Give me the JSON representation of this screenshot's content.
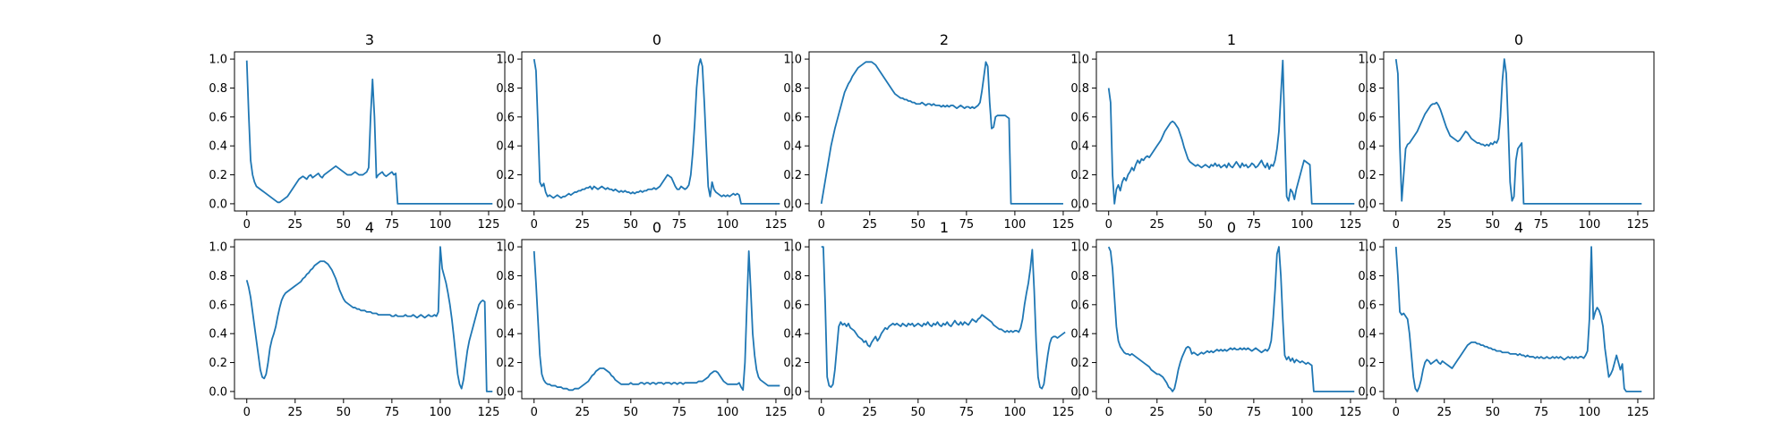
{
  "figure": {
    "series_color": "#1f77b4",
    "xticks": [
      0,
      25,
      50,
      75,
      100,
      125
    ],
    "yticks": [
      0.0,
      0.2,
      0.4,
      0.6,
      0.8,
      1.0
    ],
    "ytick_labels": [
      "0.0",
      "0.2",
      "0.4",
      "0.6",
      "0.8",
      "1.0"
    ],
    "xlim": [
      -6.35,
      133.35
    ],
    "ylim": [
      -0.05,
      1.05
    ]
  },
  "chart_data": [
    {
      "type": "line",
      "title": "3",
      "x_start": 0,
      "values": [
        0.99,
        0.62,
        0.3,
        0.2,
        0.15,
        0.12,
        0.11,
        0.1,
        0.09,
        0.08,
        0.07,
        0.06,
        0.05,
        0.04,
        0.03,
        0.02,
        0.01,
        0.01,
        0.02,
        0.03,
        0.04,
        0.05,
        0.07,
        0.09,
        0.11,
        0.13,
        0.15,
        0.17,
        0.18,
        0.19,
        0.18,
        0.17,
        0.19,
        0.2,
        0.18,
        0.19,
        0.2,
        0.21,
        0.19,
        0.18,
        0.2,
        0.21,
        0.22,
        0.23,
        0.24,
        0.25,
        0.26,
        0.25,
        0.24,
        0.23,
        0.22,
        0.21,
        0.2,
        0.2,
        0.2,
        0.21,
        0.22,
        0.21,
        0.2,
        0.2,
        0.2,
        0.21,
        0.22,
        0.25,
        0.6,
        0.86,
        0.6,
        0.18,
        0.2,
        0.21,
        0.22,
        0.2,
        0.19,
        0.2,
        0.21,
        0.22,
        0.2,
        0.21,
        0.0,
        0.0,
        0.0,
        0.0,
        0.0,
        0.0,
        0.0,
        0.0,
        0.0,
        0.0,
        0.0,
        0.0,
        0.0,
        0.0,
        0.0,
        0.0,
        0.0,
        0.0,
        0.0,
        0.0,
        0.0,
        0.0,
        0.0,
        0.0,
        0.0,
        0.0,
        0.0,
        0.0,
        0.0,
        0.0,
        0.0,
        0.0,
        0.0,
        0.0,
        0.0,
        0.0,
        0.0,
        0.0,
        0.0,
        0.0,
        0.0,
        0.0,
        0.0,
        0.0,
        0.0,
        0.0,
        0.0,
        0.0,
        0.0,
        0.0
      ]
    },
    {
      "type": "line",
      "title": "0",
      "x_start": 0,
      "values": [
        1.0,
        0.92,
        0.55,
        0.15,
        0.12,
        0.14,
        0.08,
        0.05,
        0.06,
        0.05,
        0.04,
        0.05,
        0.06,
        0.05,
        0.04,
        0.05,
        0.05,
        0.06,
        0.07,
        0.06,
        0.07,
        0.08,
        0.08,
        0.09,
        0.09,
        0.1,
        0.1,
        0.11,
        0.11,
        0.12,
        0.1,
        0.12,
        0.11,
        0.1,
        0.11,
        0.12,
        0.11,
        0.1,
        0.11,
        0.1,
        0.1,
        0.09,
        0.1,
        0.09,
        0.08,
        0.09,
        0.08,
        0.09,
        0.08,
        0.08,
        0.07,
        0.08,
        0.07,
        0.08,
        0.08,
        0.09,
        0.08,
        0.09,
        0.09,
        0.1,
        0.1,
        0.1,
        0.11,
        0.1,
        0.11,
        0.12,
        0.14,
        0.16,
        0.18,
        0.2,
        0.19,
        0.18,
        0.15,
        0.12,
        0.1,
        0.1,
        0.12,
        0.11,
        0.1,
        0.11,
        0.13,
        0.2,
        0.35,
        0.55,
        0.8,
        0.95,
        1.0,
        0.95,
        0.7,
        0.4,
        0.12,
        0.05,
        0.15,
        0.1,
        0.08,
        0.07,
        0.06,
        0.05,
        0.06,
        0.05,
        0.06,
        0.05,
        0.06,
        0.07,
        0.06,
        0.07,
        0.06,
        0.0,
        0.0,
        0.0,
        0.0,
        0.0,
        0.0,
        0.0,
        0.0,
        0.0,
        0.0,
        0.0,
        0.0,
        0.0,
        0.0,
        0.0,
        0.0,
        0.0,
        0.0,
        0.0,
        0.0,
        0.0
      ]
    },
    {
      "type": "line",
      "title": "2",
      "x_start": 0,
      "values": [
        0.0,
        0.08,
        0.16,
        0.24,
        0.32,
        0.4,
        0.46,
        0.52,
        0.57,
        0.62,
        0.67,
        0.72,
        0.77,
        0.8,
        0.83,
        0.85,
        0.88,
        0.9,
        0.92,
        0.94,
        0.95,
        0.96,
        0.97,
        0.98,
        0.98,
        0.98,
        0.98,
        0.97,
        0.96,
        0.94,
        0.92,
        0.9,
        0.88,
        0.86,
        0.84,
        0.82,
        0.8,
        0.78,
        0.76,
        0.75,
        0.74,
        0.73,
        0.73,
        0.72,
        0.72,
        0.71,
        0.71,
        0.7,
        0.7,
        0.69,
        0.69,
        0.69,
        0.7,
        0.69,
        0.68,
        0.69,
        0.69,
        0.68,
        0.69,
        0.68,
        0.68,
        0.68,
        0.67,
        0.68,
        0.67,
        0.68,
        0.67,
        0.68,
        0.68,
        0.67,
        0.66,
        0.67,
        0.68,
        0.67,
        0.66,
        0.67,
        0.67,
        0.66,
        0.67,
        0.66,
        0.67,
        0.68,
        0.7,
        0.78,
        0.88,
        0.98,
        0.95,
        0.7,
        0.52,
        0.53,
        0.6,
        0.61,
        0.61,
        0.61,
        0.61,
        0.61,
        0.6,
        0.59,
        0.0,
        0.0,
        0.0,
        0.0,
        0.0,
        0.0,
        0.0,
        0.0,
        0.0,
        0.0,
        0.0,
        0.0,
        0.0,
        0.0,
        0.0,
        0.0,
        0.0,
        0.0,
        0.0,
        0.0,
        0.0,
        0.0,
        0.0,
        0.0,
        0.0,
        0.0,
        0.0,
        0.0
      ]
    },
    {
      "type": "line",
      "title": "1",
      "x_start": 0,
      "values": [
        0.8,
        0.7,
        0.2,
        0.0,
        0.1,
        0.13,
        0.09,
        0.15,
        0.18,
        0.16,
        0.2,
        0.22,
        0.25,
        0.23,
        0.27,
        0.3,
        0.28,
        0.31,
        0.3,
        0.32,
        0.33,
        0.32,
        0.34,
        0.36,
        0.38,
        0.4,
        0.42,
        0.44,
        0.47,
        0.5,
        0.52,
        0.54,
        0.56,
        0.57,
        0.56,
        0.54,
        0.52,
        0.48,
        0.44,
        0.39,
        0.35,
        0.31,
        0.29,
        0.28,
        0.27,
        0.26,
        0.27,
        0.26,
        0.25,
        0.26,
        0.27,
        0.26,
        0.25,
        0.27,
        0.26,
        0.28,
        0.26,
        0.27,
        0.25,
        0.26,
        0.27,
        0.25,
        0.28,
        0.26,
        0.25,
        0.27,
        0.29,
        0.27,
        0.25,
        0.28,
        0.26,
        0.27,
        0.25,
        0.26,
        0.28,
        0.27,
        0.25,
        0.26,
        0.28,
        0.3,
        0.27,
        0.25,
        0.28,
        0.24,
        0.27,
        0.26,
        0.3,
        0.38,
        0.5,
        0.75,
        0.99,
        0.5,
        0.05,
        0.02,
        0.1,
        0.08,
        0.03,
        0.1,
        0.15,
        0.2,
        0.25,
        0.3,
        0.29,
        0.28,
        0.27,
        0.0,
        0.0,
        0.0,
        0.0,
        0.0,
        0.0,
        0.0,
        0.0,
        0.0,
        0.0,
        0.0,
        0.0,
        0.0,
        0.0,
        0.0,
        0.0,
        0.0,
        0.0,
        0.0,
        0.0,
        0.0,
        0.0,
        0.0
      ]
    },
    {
      "type": "line",
      "title": "0",
      "x_start": 0,
      "values": [
        1.0,
        0.9,
        0.4,
        0.02,
        0.2,
        0.38,
        0.41,
        0.42,
        0.44,
        0.46,
        0.48,
        0.5,
        0.53,
        0.56,
        0.59,
        0.62,
        0.64,
        0.66,
        0.68,
        0.69,
        0.69,
        0.7,
        0.68,
        0.65,
        0.61,
        0.57,
        0.53,
        0.5,
        0.47,
        0.46,
        0.45,
        0.44,
        0.43,
        0.44,
        0.46,
        0.48,
        0.5,
        0.49,
        0.47,
        0.45,
        0.44,
        0.43,
        0.42,
        0.42,
        0.41,
        0.41,
        0.4,
        0.41,
        0.4,
        0.42,
        0.41,
        0.43,
        0.42,
        0.45,
        0.6,
        0.85,
        1.0,
        0.9,
        0.55,
        0.15,
        0.02,
        0.05,
        0.3,
        0.38,
        0.4,
        0.42,
        0.0,
        0.0,
        0.0,
        0.0,
        0.0,
        0.0,
        0.0,
        0.0,
        0.0,
        0.0,
        0.0,
        0.0,
        0.0,
        0.0,
        0.0,
        0.0,
        0.0,
        0.0,
        0.0,
        0.0,
        0.0,
        0.0,
        0.0,
        0.0,
        0.0,
        0.0,
        0.0,
        0.0,
        0.0,
        0.0,
        0.0,
        0.0,
        0.0,
        0.0,
        0.0,
        0.0,
        0.0,
        0.0,
        0.0,
        0.0,
        0.0,
        0.0,
        0.0,
        0.0,
        0.0,
        0.0,
        0.0,
        0.0,
        0.0,
        0.0,
        0.0,
        0.0,
        0.0,
        0.0,
        0.0,
        0.0,
        0.0,
        0.0,
        0.0,
        0.0,
        0.0,
        0.0
      ]
    },
    {
      "type": "line",
      "title": "4",
      "x_start": 0,
      "values": [
        0.77,
        0.72,
        0.65,
        0.55,
        0.45,
        0.35,
        0.25,
        0.15,
        0.1,
        0.09,
        0.12,
        0.2,
        0.3,
        0.36,
        0.4,
        0.45,
        0.52,
        0.58,
        0.63,
        0.66,
        0.68,
        0.69,
        0.7,
        0.71,
        0.72,
        0.73,
        0.74,
        0.75,
        0.76,
        0.78,
        0.79,
        0.81,
        0.82,
        0.84,
        0.85,
        0.87,
        0.88,
        0.89,
        0.9,
        0.9,
        0.9,
        0.89,
        0.88,
        0.86,
        0.84,
        0.81,
        0.78,
        0.74,
        0.7,
        0.67,
        0.64,
        0.62,
        0.61,
        0.6,
        0.59,
        0.58,
        0.58,
        0.57,
        0.57,
        0.56,
        0.56,
        0.56,
        0.55,
        0.55,
        0.55,
        0.54,
        0.54,
        0.54,
        0.53,
        0.53,
        0.53,
        0.53,
        0.53,
        0.53,
        0.53,
        0.52,
        0.52,
        0.53,
        0.52,
        0.52,
        0.52,
        0.52,
        0.53,
        0.52,
        0.52,
        0.52,
        0.53,
        0.52,
        0.51,
        0.52,
        0.53,
        0.52,
        0.51,
        0.52,
        0.53,
        0.52,
        0.52,
        0.53,
        0.52,
        0.55,
        1.0,
        0.85,
        0.8,
        0.75,
        0.68,
        0.6,
        0.5,
        0.38,
        0.25,
        0.12,
        0.05,
        0.02,
        0.08,
        0.18,
        0.28,
        0.35,
        0.4,
        0.45,
        0.5,
        0.55,
        0.6,
        0.62,
        0.63,
        0.62,
        0.0,
        0.0,
        0.0,
        0.0
      ]
    },
    {
      "type": "line",
      "title": "0",
      "x_start": 0,
      "values": [
        0.97,
        0.75,
        0.5,
        0.25,
        0.12,
        0.08,
        0.06,
        0.05,
        0.05,
        0.04,
        0.04,
        0.04,
        0.03,
        0.03,
        0.03,
        0.02,
        0.02,
        0.02,
        0.01,
        0.01,
        0.01,
        0.02,
        0.02,
        0.02,
        0.03,
        0.04,
        0.05,
        0.06,
        0.07,
        0.09,
        0.11,
        0.12,
        0.14,
        0.15,
        0.16,
        0.16,
        0.16,
        0.15,
        0.14,
        0.13,
        0.11,
        0.1,
        0.08,
        0.07,
        0.06,
        0.05,
        0.05,
        0.05,
        0.05,
        0.05,
        0.06,
        0.05,
        0.05,
        0.05,
        0.05,
        0.06,
        0.06,
        0.05,
        0.06,
        0.06,
        0.05,
        0.06,
        0.06,
        0.05,
        0.06,
        0.06,
        0.06,
        0.05,
        0.06,
        0.06,
        0.06,
        0.05,
        0.06,
        0.06,
        0.05,
        0.06,
        0.06,
        0.05,
        0.06,
        0.06,
        0.06,
        0.06,
        0.06,
        0.06,
        0.06,
        0.07,
        0.07,
        0.07,
        0.08,
        0.09,
        0.1,
        0.12,
        0.13,
        0.14,
        0.14,
        0.13,
        0.11,
        0.09,
        0.07,
        0.06,
        0.05,
        0.05,
        0.05,
        0.05,
        0.05,
        0.05,
        0.06,
        0.03,
        0.01,
        0.2,
        0.6,
        0.97,
        0.7,
        0.4,
        0.25,
        0.15,
        0.1,
        0.08,
        0.07,
        0.06,
        0.05,
        0.04,
        0.04,
        0.04,
        0.04,
        0.04,
        0.04,
        0.04
      ]
    },
    {
      "type": "line",
      "title": "1",
      "x_start": 0,
      "values": [
        1.0,
        1.0,
        0.6,
        0.1,
        0.04,
        0.03,
        0.05,
        0.15,
        0.3,
        0.45,
        0.48,
        0.46,
        0.47,
        0.45,
        0.47,
        0.44,
        0.43,
        0.42,
        0.4,
        0.38,
        0.37,
        0.36,
        0.34,
        0.35,
        0.32,
        0.31,
        0.34,
        0.36,
        0.38,
        0.35,
        0.37,
        0.4,
        0.42,
        0.44,
        0.43,
        0.45,
        0.46,
        0.47,
        0.46,
        0.47,
        0.46,
        0.45,
        0.47,
        0.46,
        0.45,
        0.47,
        0.46,
        0.47,
        0.45,
        0.46,
        0.47,
        0.46,
        0.45,
        0.47,
        0.46,
        0.48,
        0.46,
        0.45,
        0.47,
        0.46,
        0.48,
        0.46,
        0.45,
        0.47,
        0.46,
        0.48,
        0.46,
        0.45,
        0.47,
        0.49,
        0.47,
        0.46,
        0.48,
        0.46,
        0.48,
        0.47,
        0.46,
        0.48,
        0.5,
        0.49,
        0.48,
        0.5,
        0.51,
        0.53,
        0.52,
        0.51,
        0.5,
        0.49,
        0.48,
        0.46,
        0.45,
        0.44,
        0.43,
        0.43,
        0.42,
        0.41,
        0.42,
        0.41,
        0.42,
        0.41,
        0.42,
        0.42,
        0.41,
        0.44,
        0.5,
        0.6,
        0.68,
        0.75,
        0.85,
        0.98,
        0.7,
        0.35,
        0.1,
        0.03,
        0.02,
        0.05,
        0.15,
        0.25,
        0.33,
        0.37,
        0.38,
        0.38,
        0.37,
        0.38,
        0.39,
        0.4,
        0.41
      ]
    },
    {
      "type": "line",
      "title": "0",
      "x_start": 0,
      "values": [
        1.0,
        0.97,
        0.85,
        0.65,
        0.45,
        0.35,
        0.31,
        0.29,
        0.27,
        0.26,
        0.26,
        0.25,
        0.26,
        0.25,
        0.24,
        0.23,
        0.22,
        0.21,
        0.2,
        0.19,
        0.18,
        0.17,
        0.15,
        0.14,
        0.13,
        0.12,
        0.12,
        0.11,
        0.1,
        0.08,
        0.06,
        0.03,
        0.02,
        0.0,
        0.02,
        0.08,
        0.15,
        0.2,
        0.24,
        0.27,
        0.3,
        0.31,
        0.3,
        0.26,
        0.27,
        0.26,
        0.25,
        0.26,
        0.27,
        0.26,
        0.27,
        0.28,
        0.27,
        0.28,
        0.27,
        0.28,
        0.29,
        0.28,
        0.29,
        0.28,
        0.29,
        0.28,
        0.29,
        0.3,
        0.29,
        0.3,
        0.29,
        0.29,
        0.3,
        0.29,
        0.3,
        0.29,
        0.3,
        0.29,
        0.28,
        0.29,
        0.3,
        0.29,
        0.28,
        0.27,
        0.28,
        0.29,
        0.28,
        0.3,
        0.35,
        0.5,
        0.7,
        0.95,
        1.0,
        0.8,
        0.5,
        0.25,
        0.22,
        0.24,
        0.21,
        0.23,
        0.2,
        0.22,
        0.21,
        0.2,
        0.21,
        0.2,
        0.19,
        0.2,
        0.19,
        0.18,
        0.0,
        0.0,
        0.0,
        0.0,
        0.0,
        0.0,
        0.0,
        0.0,
        0.0,
        0.0,
        0.0,
        0.0,
        0.0,
        0.0,
        0.0,
        0.0,
        0.0,
        0.0,
        0.0,
        0.0,
        0.0,
        0.0
      ]
    },
    {
      "type": "line",
      "title": "4",
      "x_start": 0,
      "values": [
        1.0,
        0.8,
        0.55,
        0.53,
        0.54,
        0.52,
        0.5,
        0.4,
        0.25,
        0.1,
        0.02,
        0.0,
        0.03,
        0.08,
        0.15,
        0.2,
        0.22,
        0.21,
        0.19,
        0.2,
        0.21,
        0.22,
        0.2,
        0.19,
        0.21,
        0.2,
        0.19,
        0.18,
        0.17,
        0.16,
        0.18,
        0.2,
        0.22,
        0.24,
        0.26,
        0.28,
        0.3,
        0.32,
        0.33,
        0.34,
        0.34,
        0.34,
        0.33,
        0.33,
        0.32,
        0.32,
        0.31,
        0.31,
        0.3,
        0.3,
        0.29,
        0.29,
        0.28,
        0.28,
        0.28,
        0.27,
        0.27,
        0.27,
        0.27,
        0.26,
        0.26,
        0.26,
        0.26,
        0.25,
        0.26,
        0.25,
        0.25,
        0.24,
        0.25,
        0.24,
        0.24,
        0.24,
        0.23,
        0.24,
        0.23,
        0.24,
        0.23,
        0.23,
        0.24,
        0.23,
        0.23,
        0.24,
        0.23,
        0.24,
        0.23,
        0.24,
        0.23,
        0.22,
        0.23,
        0.24,
        0.23,
        0.24,
        0.23,
        0.24,
        0.23,
        0.24,
        0.24,
        0.23,
        0.25,
        0.28,
        0.5,
        1.0,
        0.5,
        0.55,
        0.58,
        0.56,
        0.52,
        0.45,
        0.3,
        0.2,
        0.1,
        0.12,
        0.15,
        0.2,
        0.25,
        0.2,
        0.15,
        0.19,
        0.02,
        0.0,
        0.0,
        0.0,
        0.0,
        0.0,
        0.0,
        0.0,
        0.0,
        0.0
      ]
    }
  ]
}
